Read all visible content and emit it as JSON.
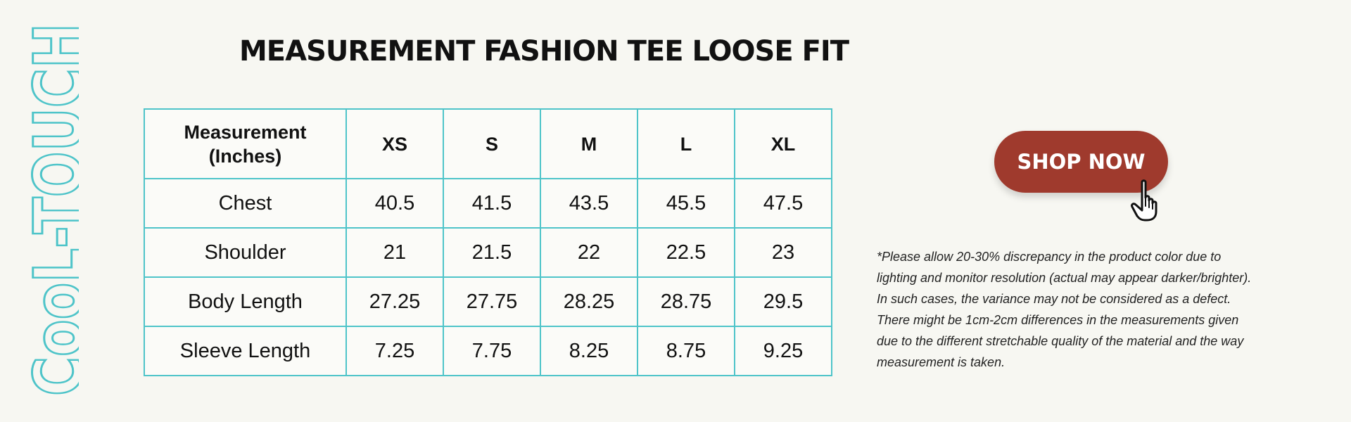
{
  "brand": {
    "text": "CooL-TOUCH",
    "color": "#4ec4c9"
  },
  "title": "MEASUREMENT FASHION TEE LOOSE FIT",
  "table": {
    "header": {
      "label": "Measurement\n(Inches)",
      "sizes": [
        "XS",
        "S",
        "M",
        "L",
        "XL"
      ]
    },
    "rows": [
      {
        "label": "Chest",
        "values": [
          "40.5",
          "41.5",
          "43.5",
          "45.5",
          "47.5"
        ]
      },
      {
        "label": "Shoulder",
        "values": [
          "21",
          "21.5",
          "22",
          "22.5",
          "23"
        ]
      },
      {
        "label": "Body Length",
        "values": [
          "27.25",
          "27.75",
          "28.25",
          "28.75",
          "29.5"
        ]
      },
      {
        "label": "Sleeve Length",
        "values": [
          "7.25",
          "7.75",
          "8.25",
          "8.75",
          "9.25"
        ]
      }
    ],
    "border_color": "#4ec4c9"
  },
  "cta": {
    "label": "SHOP NOW",
    "color": "#9f3a2d",
    "icon": "hand-pointer-icon"
  },
  "disclaimer": "*Please allow 20-30% discrepancy in the product color due to\n  lighting and monitor resolution (actual may appear darker/brighter).\n  In such cases, the variance may not be considered as a defect.\n  There might be 1cm-2cm differences in the measurements given\n  due to the different stretchable quality of the material and the way\n  measurement is taken."
}
